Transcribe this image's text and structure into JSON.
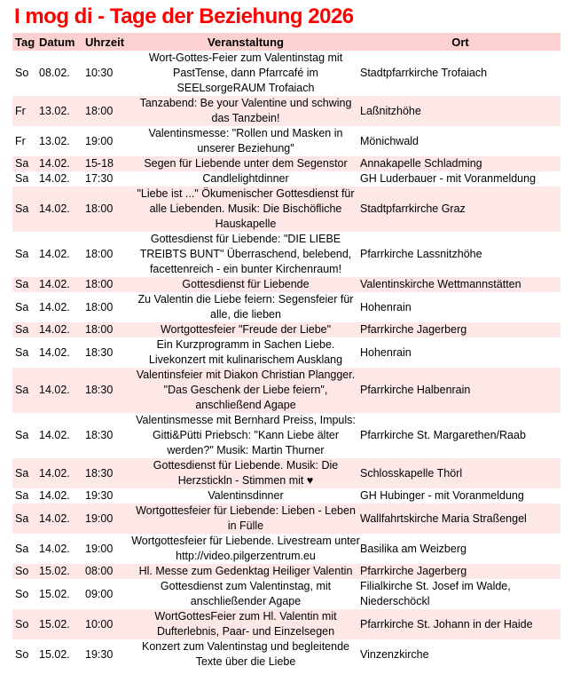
{
  "title": "I mog di - Tage der Beziehung 2026",
  "colors": {
    "title": "#ff0000",
    "header_bg": "#fcd1d0",
    "row_alt_bg": "#fde8e7",
    "text": "#000000"
  },
  "table": {
    "headers": [
      "Tag",
      "Datum",
      "Uhrzeit",
      "Veranstaltung",
      "Ort"
    ],
    "rows": [
      {
        "tag": "So",
        "datum": "08.02.",
        "uhrzeit": "10:30",
        "veranstaltung": "Wort-Gottes-Feier zum Valentinstag mit PastTense, dann Pfarrcafé im SEELsorgeRAUM Trofaiach",
        "ort": "Stadtpfarrkirche Trofaiach"
      },
      {
        "tag": "Fr",
        "datum": "13.02.",
        "uhrzeit": "18:00",
        "veranstaltung": "Tanzabend: Be your Valentine und schwing das Tanzbein!",
        "ort": "Laßnitzhöhe"
      },
      {
        "tag": "Fr",
        "datum": "13.02.",
        "uhrzeit": "19:00",
        "veranstaltung": "Valentinsmesse: \"Rollen und Masken in unserer Beziehung\"",
        "ort": "Mönichwald"
      },
      {
        "tag": "Sa",
        "datum": "14.02.",
        "uhrzeit": "15-18",
        "veranstaltung": "Segen für Liebende unter dem Segenstor",
        "ort": "Annakapelle Schladming"
      },
      {
        "tag": "Sa",
        "datum": "14.02.",
        "uhrzeit": "17:30",
        "veranstaltung": "Candlelightdinner",
        "ort": "GH Luderbauer - mit Voranmeldung"
      },
      {
        "tag": "Sa",
        "datum": "14.02.",
        "uhrzeit": "18:00",
        "veranstaltung": "\"Liebe ist ...\" Ökumenischer Gottesdienst für alle Liebenden. Musik: Die Bischöfliche Hauskapelle",
        "ort": "Stadtpfarrkirche Graz"
      },
      {
        "tag": "Sa",
        "datum": "14.02.",
        "uhrzeit": "18:00",
        "veranstaltung": "Gottesdienst für Liebende: \"DIE LIEBE TREIBTS BUNT\" Überraschend, belebend, facettenreich - ein bunter Kirchenraum!",
        "ort": "Pfarrkirche Lassnitzhöhe"
      },
      {
        "tag": "Sa",
        "datum": "14.02.",
        "uhrzeit": "18:00",
        "veranstaltung": "Gottesdienst für Liebende",
        "ort": "Valentinskirche Wettmannstätten"
      },
      {
        "tag": "Sa",
        "datum": "14.02.",
        "uhrzeit": "18:00",
        "veranstaltung": "Zu Valentin die Liebe feiern: Segensfeier für alle, die lieben",
        "ort": "Hohenrain"
      },
      {
        "tag": "Sa",
        "datum": "14.02.",
        "uhrzeit": "18:00",
        "veranstaltung": "Wortgottesfeier \"Freude der Liebe\"",
        "ort": "Pfarrkirche Jagerberg"
      },
      {
        "tag": "Sa",
        "datum": "14.02.",
        "uhrzeit": "18:30",
        "veranstaltung": "Ein Kurzprogramm in Sachen Liebe. Livekonzert mit kulinarischem Ausklang",
        "ort": "Hohenrain"
      },
      {
        "tag": "Sa",
        "datum": "14.02.",
        "uhrzeit": "18:30",
        "veranstaltung": "Valentinsfeier mit Diakon Christian Plangger. \"Das Geschenk der Liebe feiern\", anschließend Agape",
        "ort": "Pfarrkirche Halbenrain"
      },
      {
        "tag": "Sa",
        "datum": "14.02.",
        "uhrzeit": "18:30",
        "veranstaltung": "Valentinsmesse mit Bernhard Preiss, Impuls: Gitti&Pütti Priebsch: \"Kann Liebe älter werden?\" Musik: Martin Thurner",
        "ort": "Pfarrkirche St. Margarethen/Raab"
      },
      {
        "tag": "Sa",
        "datum": "14.02.",
        "uhrzeit": "18:30",
        "veranstaltung": "Gottesdienst für Liebende. Musik: Die Herzstickln - Stimmen mit ♥",
        "ort": "Schlosskapelle Thörl"
      },
      {
        "tag": "Sa",
        "datum": "14.02.",
        "uhrzeit": "19:30",
        "veranstaltung": "Valentinsdinner",
        "ort": "GH Hubinger - mit Voranmeldung"
      },
      {
        "tag": "Sa",
        "datum": "14.02.",
        "uhrzeit": "19:00",
        "veranstaltung": "Wortgottesfeier für Liebende: Lieben - Leben in Fülle",
        "ort": "Wallfahrtskirche Maria Straßengel"
      },
      {
        "tag": "Sa",
        "datum": "14.02.",
        "uhrzeit": "19:00",
        "veranstaltung": "Wortgottesfeier für Liebende. Livestream unter http://video.pilgerzentrum.eu",
        "ort": "Basilika am Weizberg"
      },
      {
        "tag": "So",
        "datum": "15.02.",
        "uhrzeit": "08:00",
        "veranstaltung": "Hl. Messe zum Gedenktag Heiliger Valentin",
        "ort": "Pfarrkirche Jagerberg"
      },
      {
        "tag": "So",
        "datum": "15.02.",
        "uhrzeit": "09:00",
        "veranstaltung": "Gottesdienst zum Valentinstag, mit anschließender Agape",
        "ort": "Filialkirche St. Josef im Walde, Niederschöckl"
      },
      {
        "tag": "So",
        "datum": "15.02.",
        "uhrzeit": "10:00",
        "veranstaltung": "WortGottesFeier zum Hl. Valentin mit Dufterlebnis, Paar- und Einzelsegen",
        "ort": "Pfarrkirche St. Johann in der Haide"
      },
      {
        "tag": "So",
        "datum": "15.02.",
        "uhrzeit": "19:30",
        "veranstaltung": "Konzert zum Valentinstag und begleitende Texte über die Liebe",
        "ort": "Vinzenzkirche"
      }
    ]
  }
}
